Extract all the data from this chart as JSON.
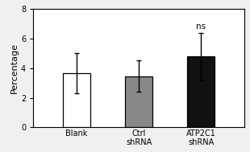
{
  "categories": [
    "Blank",
    "Ctrl\nshRNA",
    "ATP2C1\nshRNA"
  ],
  "values": [
    3.65,
    3.45,
    4.78
  ],
  "errors": [
    1.35,
    1.05,
    1.6
  ],
  "bar_colors": [
    "white",
    "#888888",
    "#111111"
  ],
  "bar_edgecolors": [
    "black",
    "black",
    "black"
  ],
  "ylabel": "Percentage",
  "ylim": [
    0,
    8
  ],
  "yticks": [
    0,
    2,
    4,
    6,
    8
  ],
  "annotation": "ns",
  "annotation_bar_index": 2,
  "annotation_fontsize": 7.5,
  "ylabel_fontsize": 8,
  "tick_fontsize": 7,
  "bar_width": 0.45,
  "error_capsize": 2.5,
  "error_linewidth": 1.0,
  "background_color": "#f0f0f0",
  "plot_bg_color": "white"
}
